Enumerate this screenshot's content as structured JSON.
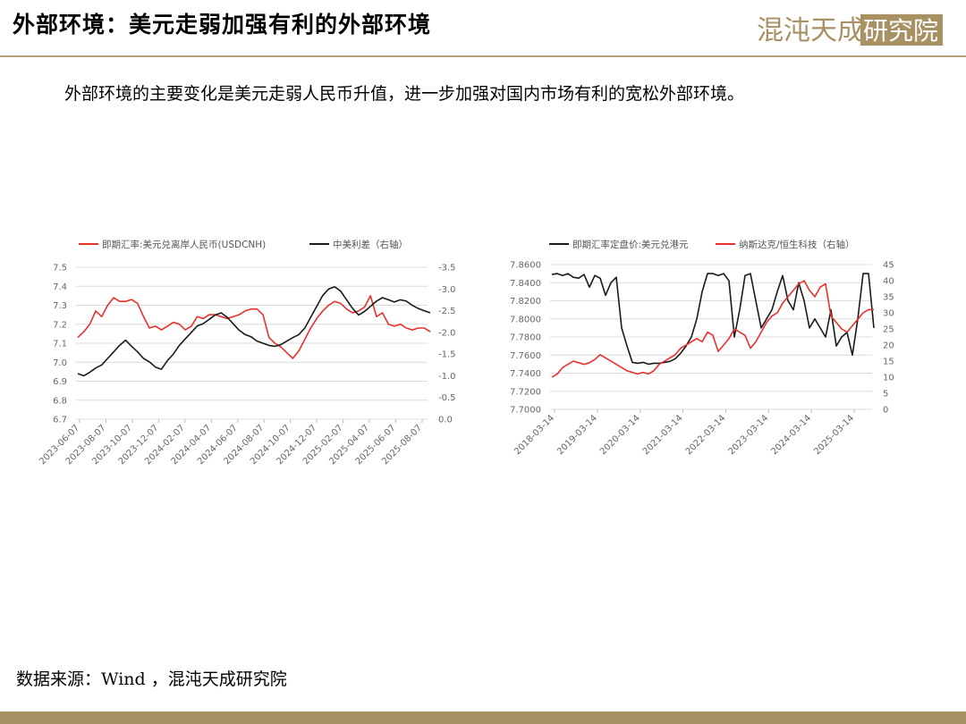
{
  "header": {
    "title": "外部环境：美元走弱加强有利的外部环境",
    "logo_text": "混沌天成研究院"
  },
  "subtitle": "外部环境的主要变化是美元走弱人民币升值，进一步加强对国内市场有利的宽松外部环境。",
  "source": "数据来源：Wind ，混沌天成研究院",
  "colors": {
    "red": "#e8302c",
    "black": "#1a1a1a",
    "gold": "#a89163",
    "grid": "#dcdcdc"
  },
  "chart_data": [
    {
      "type": "line",
      "x_tick_labels": [
        "2023-06-07",
        "2023-08-07",
        "2023-10-07",
        "2023-12-07",
        "2024-02-07",
        "2024-04-07",
        "2024-06-07",
        "2024-08-07",
        "2024-10-07",
        "2024-12-07",
        "2025-02-07",
        "2025-04-07",
        "2025-06-07",
        "2025-08-07"
      ],
      "y_left": {
        "ticks": [
          "7.5",
          "7.4",
          "7.3",
          "7.2",
          "7.1",
          "7.0",
          "6.9",
          "6.8",
          "6.7"
        ],
        "ylim": [
          6.7,
          7.5
        ]
      },
      "y_right": {
        "ticks": [
          "-3.5",
          "-3.0",
          "-2.5",
          "-2.0",
          "-1.5",
          "-1.0",
          "-0.5",
          "0.0"
        ],
        "ylim": [
          0.0,
          -3.5
        ],
        "inverted": true
      },
      "grid": true,
      "legend_position": "top",
      "series": [
        {
          "name": "即期汇率:美元兑离岸人民币(USDCNH)",
          "axis": "left",
          "color": "#e8302c",
          "values": [
            7.13,
            7.16,
            7.2,
            7.27,
            7.24,
            7.3,
            7.34,
            7.32,
            7.32,
            7.33,
            7.31,
            7.24,
            7.18,
            7.19,
            7.17,
            7.19,
            7.21,
            7.2,
            7.17,
            7.19,
            7.24,
            7.23,
            7.25,
            7.25,
            7.24,
            7.23,
            7.24,
            7.25,
            7.27,
            7.28,
            7.28,
            7.25,
            7.13,
            7.1,
            7.08,
            7.05,
            7.02,
            7.06,
            7.12,
            7.18,
            7.23,
            7.27,
            7.3,
            7.32,
            7.31,
            7.28,
            7.26,
            7.27,
            7.29,
            7.35,
            7.24,
            7.26,
            7.2,
            7.19,
            7.2,
            7.18,
            7.17,
            7.18,
            7.18,
            7.16
          ]
        },
        {
          "name": "中美利差（右轴）",
          "axis": "right",
          "color": "#1a1a1a",
          "values": [
            -1.05,
            -1.0,
            -1.08,
            -1.18,
            -1.25,
            -1.4,
            -1.55,
            -1.7,
            -1.82,
            -1.68,
            -1.55,
            -1.4,
            -1.32,
            -1.2,
            -1.15,
            -1.35,
            -1.5,
            -1.7,
            -1.85,
            -2.0,
            -2.15,
            -2.2,
            -2.3,
            -2.4,
            -2.45,
            -2.35,
            -2.2,
            -2.05,
            -1.95,
            -1.9,
            -1.8,
            -1.75,
            -1.7,
            -1.68,
            -1.72,
            -1.8,
            -1.88,
            -1.95,
            -2.1,
            -2.35,
            -2.6,
            -2.85,
            -3.0,
            -3.05,
            -2.95,
            -2.75,
            -2.55,
            -2.4,
            -2.48,
            -2.6,
            -2.72,
            -2.8,
            -2.75,
            -2.7,
            -2.75,
            -2.72,
            -2.62,
            -2.55,
            -2.5,
            -2.45
          ]
        }
      ]
    },
    {
      "type": "line",
      "x_tick_labels": [
        "2018-03-14",
        "2019-03-14",
        "2020-03-14",
        "2021-03-14",
        "2022-03-14",
        "2023-03-14",
        "2024-03-14",
        "2025-03-14"
      ],
      "y_left": {
        "ticks": [
          "7.8600",
          "7.8400",
          "7.8200",
          "7.8000",
          "7.7800",
          "7.7600",
          "7.7400",
          "7.7200",
          "7.7000"
        ],
        "ylim": [
          7.7,
          7.86
        ]
      },
      "y_right": {
        "ticks": [
          "45",
          "40",
          "35",
          "30",
          "25",
          "20",
          "15",
          "10",
          "5",
          "0"
        ],
        "ylim": [
          0,
          45
        ]
      },
      "grid": true,
      "legend_position": "top",
      "series": [
        {
          "name": "即期汇率定盘价:美元兑港元",
          "axis": "left",
          "color": "#1a1a1a",
          "values": [
            7.849,
            7.85,
            7.848,
            7.85,
            7.846,
            7.845,
            7.849,
            7.835,
            7.848,
            7.845,
            7.826,
            7.84,
            7.846,
            7.79,
            7.77,
            7.752,
            7.751,
            7.752,
            7.75,
            7.751,
            7.751,
            7.752,
            7.753,
            7.756,
            7.762,
            7.77,
            7.78,
            7.8,
            7.83,
            7.85,
            7.85,
            7.848,
            7.85,
            7.842,
            7.78,
            7.81,
            7.848,
            7.85,
            7.82,
            7.79,
            7.8,
            7.81,
            7.83,
            7.848,
            7.82,
            7.81,
            7.84,
            7.82,
            7.79,
            7.8,
            7.79,
            7.78,
            7.81,
            7.77,
            7.78,
            7.785,
            7.76,
            7.8,
            7.85,
            7.85,
            7.79
          ]
        },
        {
          "name": "纳斯达克/恒生科技（右轴）",
          "axis": "right",
          "color": "#e8302c",
          "values": [
            10.0,
            11.0,
            13.0,
            14.0,
            15.0,
            14.5,
            14.0,
            14.5,
            15.5,
            17.0,
            16.0,
            15.0,
            14.0,
            13.0,
            12.0,
            11.5,
            11.0,
            11.5,
            11.0,
            12.0,
            14.0,
            15.0,
            16.0,
            17.0,
            19.0,
            20.0,
            21.0,
            22.0,
            21.0,
            24.0,
            23.0,
            18.0,
            20.0,
            22.0,
            25.0,
            24.0,
            23.0,
            19.0,
            21.0,
            24.0,
            27.0,
            29.0,
            30.0,
            33.0,
            35.0,
            37.0,
            39.0,
            40.0,
            37.0,
            35.0,
            38.0,
            39.0,
            29.0,
            27.0,
            25.0,
            24.0,
            26.0,
            28.0,
            30.0,
            31.0,
            31.0
          ]
        }
      ]
    }
  ]
}
